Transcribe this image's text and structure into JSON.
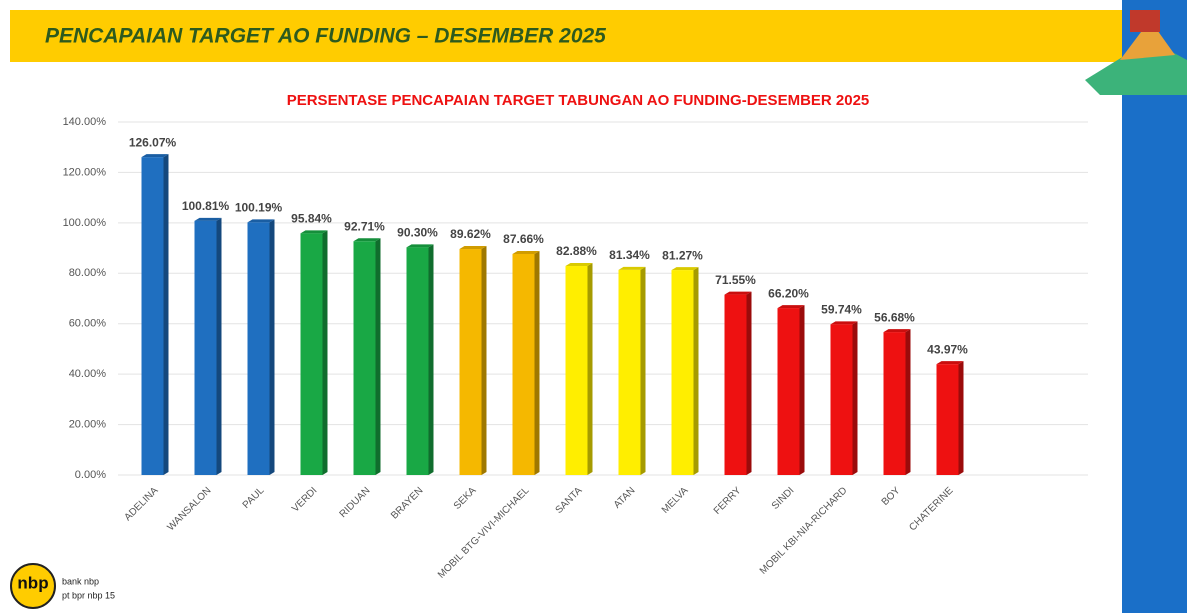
{
  "header": {
    "title": "PENCAPAIAN TARGET AO FUNDING – DESEMBER 2025"
  },
  "footer": {
    "logo": "nbp",
    "line1": "bank nbp",
    "line2": "pt bpr nbp 15"
  },
  "chart_data": {
    "type": "bar",
    "title": "PERSENTASE PENCAPAIAN TARGET TABUNGAN AO FUNDING-DESEMBER 2025",
    "categories": [
      "ADELINA",
      "WANSALON",
      "PAUL",
      "VERDI",
      "RIDUAN",
      "BRAYEN",
      "SEKA",
      "MOBIL BTG-VIVI-MICHAEL",
      "SANTA",
      "ATAN",
      "MELVA",
      "FERRY",
      "SINDI",
      "MOBIL KBI-NIA-RICHARD",
      "BOY",
      "CHATERINE"
    ],
    "values": [
      126.07,
      100.81,
      100.19,
      95.84,
      92.71,
      90.3,
      89.62,
      87.66,
      82.88,
      81.34,
      81.27,
      71.55,
      66.2,
      59.74,
      56.68,
      43.97
    ],
    "value_labels": [
      "126.07%",
      "100.81%",
      "100.19%",
      "95.84%",
      "92.71%",
      "90.30%",
      "89.62%",
      "87.66%",
      "82.88%",
      "81.34%",
      "81.27%",
      "71.55%",
      "66.20%",
      "59.74%",
      "56.68%",
      "43.97%"
    ],
    "colors": [
      "#1f6fc0",
      "#1f6fc0",
      "#1f6fc0",
      "#19a845",
      "#19a845",
      "#19a845",
      "#f5b800",
      "#f5b800",
      "#ffee00",
      "#ffee00",
      "#ffee00",
      "#ee1111",
      "#ee1111",
      "#ee1111",
      "#ee1111",
      "#ee1111"
    ],
    "ylim": [
      0,
      140
    ],
    "yticks": [
      {
        "value": 0,
        "label": "0.00%"
      },
      {
        "value": 20,
        "label": "20.00%"
      },
      {
        "value": 40,
        "label": "40.00%"
      },
      {
        "value": 60,
        "label": "60.00%"
      },
      {
        "value": 80,
        "label": "80.00%"
      },
      {
        "value": 100,
        "label": "100.00%"
      },
      {
        "value": 120,
        "label": "120.00%"
      },
      {
        "value": 140,
        "label": "140.00%"
      }
    ],
    "grid": true
  }
}
